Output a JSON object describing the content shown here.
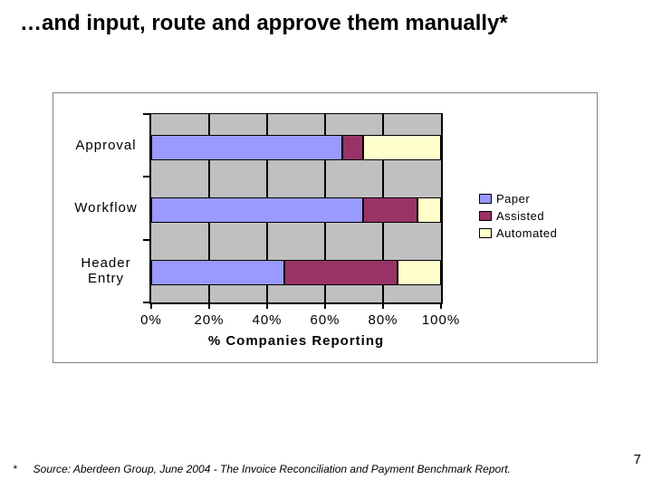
{
  "title": "…and input, route and approve them manually*",
  "footnote": {
    "marker": "*",
    "text": "Source: Aberdeen Group, June 2004 - The Invoice Reconciliation and Payment Benchmark Report."
  },
  "page_number": "7",
  "colors": {
    "plot_bg": "#c0c0c0",
    "chart_frame_border": "#808080",
    "gridline": "#000000",
    "paper": "#9999ff",
    "assisted": "#993366",
    "automated": "#ffffcc"
  },
  "chart_data": {
    "type": "bar",
    "orientation": "horizontal",
    "stacked": true,
    "categories": [
      "Approval",
      "Workflow",
      "Header Entry"
    ],
    "series": [
      {
        "name": "Paper",
        "color": "#9999ff",
        "values": [
          66,
          73,
          46
        ]
      },
      {
        "name": "Assisted",
        "color": "#993366",
        "values": [
          7,
          19,
          39
        ]
      },
      {
        "name": "Automated",
        "color": "#ffffcc",
        "values": [
          27,
          8,
          15
        ]
      }
    ],
    "xlabel": "% Companies Reporting",
    "x_ticks": [
      "0%",
      "20%",
      "40%",
      "60%",
      "80%",
      "100%"
    ],
    "xlim": [
      0,
      100
    ],
    "grid": true,
    "legend_position": "right"
  }
}
